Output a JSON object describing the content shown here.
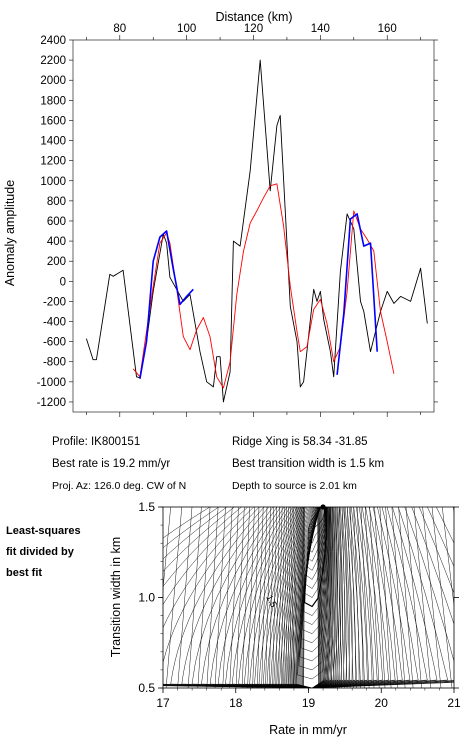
{
  "chart_data": [
    {
      "type": "line",
      "title": "",
      "xlabel": "Distance (km)",
      "ylabel": "Anomaly amplitude",
      "x_axis_position": "top",
      "xlim": [
        66,
        174
      ],
      "ylim": [
        -1300,
        2400
      ],
      "xticks": [
        80,
        100,
        120,
        140,
        160
      ],
      "yticks": [
        -1200,
        -1000,
        -800,
        -600,
        -400,
        -200,
        0,
        200,
        400,
        600,
        800,
        1000,
        1200,
        1400,
        1600,
        1800,
        2000,
        2200,
        2400
      ],
      "grid": false,
      "series": [
        {
          "color": "#000000",
          "x": [
            70,
            72,
            73,
            77,
            78,
            79,
            81,
            85,
            86,
            88,
            90,
            93,
            94,
            95,
            97,
            99,
            101,
            104,
            106,
            108,
            109,
            110,
            111,
            113,
            114,
            116,
            119,
            122,
            125,
            127,
            128,
            131,
            133,
            134,
            135,
            138,
            139,
            140,
            141,
            143,
            144,
            146,
            148,
            150,
            152,
            153,
            155,
            158,
            160,
            162,
            164,
            167,
            170,
            172
          ],
          "y": [
            -570,
            -780,
            -780,
            70,
            50,
            70,
            110,
            -950,
            -960,
            -600,
            -100,
            470,
            380,
            40,
            -80,
            -200,
            -130,
            -700,
            -1000,
            -1050,
            -750,
            -750,
            -1200,
            -900,
            400,
            350,
            1100,
            2200,
            900,
            1550,
            1650,
            -250,
            -600,
            -1050,
            -1000,
            -80,
            -200,
            -100,
            -380,
            -700,
            -950,
            100,
            670,
            520,
            -200,
            -300,
            -700,
            -300,
            -100,
            -220,
            -150,
            -200,
            130,
            -420
          ]
        },
        {
          "color": "#ff0000",
          "x": [
            84,
            86,
            88,
            90,
            92,
            94,
            95,
            97,
            99,
            101,
            103,
            105,
            107,
            109,
            111,
            113,
            115,
            117,
            119,
            121,
            123,
            125,
            127,
            129,
            131,
            133,
            134,
            136,
            138,
            140,
            142,
            144,
            146,
            148,
            150,
            152,
            154,
            156,
            158,
            160,
            162
          ],
          "y": [
            -870,
            -950,
            -500,
            -50,
            380,
            480,
            380,
            -70,
            -550,
            -680,
            -480,
            -360,
            -550,
            -950,
            -1060,
            -800,
            -130,
            300,
            580,
            700,
            830,
            950,
            970,
            550,
            -50,
            -500,
            -700,
            -650,
            -280,
            -180,
            -420,
            -800,
            -650,
            -100,
            700,
            520,
            420,
            300,
            -300,
            -600,
            -920
          ]
        },
        {
          "color": "#0000ff",
          "x": [
            86,
            88,
            90,
            92,
            94,
            96,
            98,
            100,
            102
          ],
          "y": [
            -970,
            -600,
            200,
            440,
            500,
            120,
            -230,
            -150,
            -80
          ]
        },
        {
          "color": "#0000ff",
          "x": [
            145,
            147,
            149,
            151,
            153,
            155,
            157
          ],
          "y": [
            -930,
            -320,
            620,
            670,
            350,
            380,
            -700
          ]
        }
      ]
    },
    {
      "type": "contour",
      "title": "",
      "xlabel": "Rate in mm/yr",
      "ylabel": "Transition width in km",
      "xlim": [
        17,
        21
      ],
      "ylim": [
        0.5,
        1.5
      ],
      "xticks": [
        17,
        18,
        19,
        20,
        21
      ],
      "yticks": [
        0.5,
        1.0,
        1.5
      ],
      "contour_label": "1.5",
      "best_fit_point": {
        "rate": 19.2,
        "width": 1.5
      }
    }
  ],
  "info": {
    "profile": "Profile: IK800151",
    "ridge": "Ridge Xing is 58.34 -31.85",
    "best_rate": "Best rate is 19.2 mm/yr",
    "best_width": "Best transition width is 1.5 km",
    "proj_az": "Proj. Az: 126.0 deg. CW of N",
    "depth": "Depth to source is   2.01 km"
  },
  "side_label": {
    "line1": "Least-squares",
    "line2": "fit divided by",
    "line3": "best fit"
  }
}
